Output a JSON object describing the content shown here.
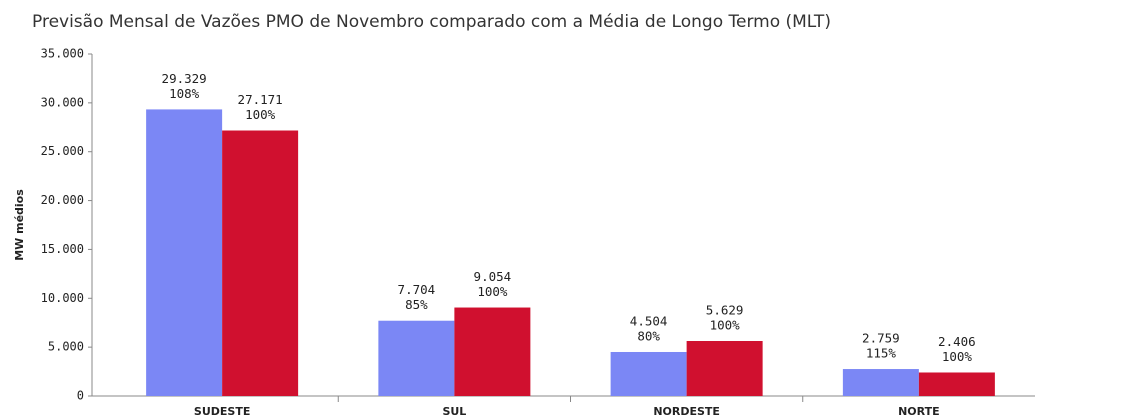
{
  "chart_data": {
    "type": "bar",
    "title": "Previsão Mensal de Vazões PMO de Novembro comparado com a Média de Longo Termo (MLT)",
    "y_label": "MW médios",
    "categories": [
      "SUDESTE",
      "SUL",
      "NORDESTE",
      "NORTE"
    ],
    "series": [
      {
        "color": "#7b87f5",
        "values": [
          29329,
          7704,
          4504,
          2759
        ],
        "value_labels": [
          "29.329",
          "7.704",
          "4.504",
          "2.759"
        ],
        "shares": [
          108,
          85,
          80,
          115
        ],
        "share_labels": [
          "108%",
          "85%",
          "80%",
          "115%"
        ]
      },
      {
        "color": "#d0102f",
        "values": [
          27171,
          9054,
          5629,
          2406
        ],
        "value_labels": [
          "27.171",
          "9.054",
          "5.629",
          "2.406"
        ],
        "shares": [
          100,
          100,
          100,
          100
        ],
        "share_labels": [
          "100%",
          "100%",
          "100%",
          "100%"
        ]
      }
    ],
    "ylim": [
      0,
      35000
    ],
    "yticks": [
      0,
      {
        "value": 5000,
        "label": "5.000"
      },
      {
        "value": 10000,
        "label": "10.000"
      },
      {
        "value": 15000,
        "label": "15.000"
      },
      {
        "value": 20000,
        "label": "20.000"
      },
      {
        "value": 25000,
        "label": "25.000"
      },
      {
        "value": 30000,
        "label": "30.000"
      },
      {
        "value": 35000,
        "label": "35.000"
      }
    ],
    "grid": false
  }
}
